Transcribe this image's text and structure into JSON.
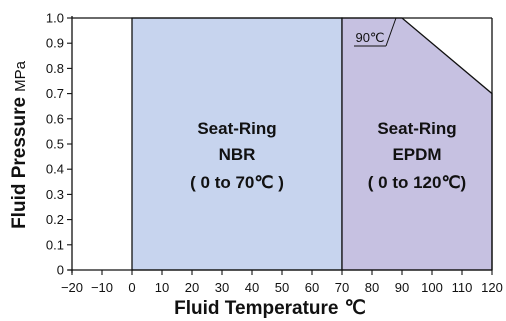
{
  "chart_data": {
    "type": "area",
    "xlabel": "Fluid Temperature",
    "xlabel_unit": "℃",
    "ylabel": "Fluid Pressure",
    "ylabel_unit": "MPa",
    "xlim": [
      -20,
      120
    ],
    "ylim": [
      0,
      1.0
    ],
    "x_ticks": [
      "-20",
      "-10",
      "0",
      "10",
      "20",
      "30",
      "40",
      "50",
      "60",
      "70",
      "80",
      "90",
      "100",
      "110",
      "120"
    ],
    "y_ticks": [
      "0",
      "0.1",
      "0.2",
      "0.3",
      "0.4",
      "0.5",
      "0.6",
      "0.7",
      "0.8",
      "0.9",
      "1.0"
    ],
    "grid": false,
    "regions": [
      {
        "lines": [
          "Seat-Ring",
          "NBR",
          "( 0 to 70℃ )"
        ],
        "color": "#c7d4ee",
        "polygon": [
          [
            0,
            0
          ],
          [
            0,
            1.0
          ],
          [
            70,
            1.0
          ],
          [
            70,
            0
          ]
        ]
      },
      {
        "lines": [
          "Seat-Ring",
          "EPDM",
          "( 0 to 120℃)"
        ],
        "color": "#c6c1e1",
        "polygon": [
          [
            70,
            0
          ],
          [
            70,
            1.0
          ],
          [
            90,
            1.0
          ],
          [
            120,
            0.7
          ],
          [
            120,
            0
          ]
        ]
      }
    ],
    "annotation": {
      "text": "90℃",
      "x": 90,
      "y": 1.0
    }
  }
}
